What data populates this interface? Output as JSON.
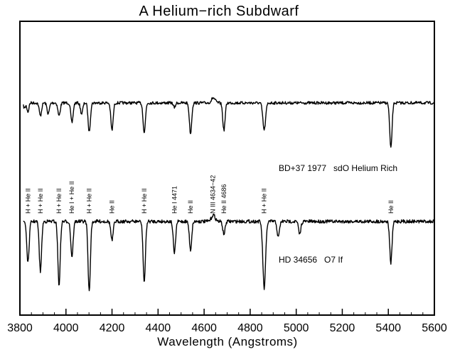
{
  "chart_data": {
    "type": "line",
    "title": "A Helium−rich Subdwarf",
    "xlabel": "Wavelength (Angstroms)",
    "ylabel": "",
    "xlim": [
      3800,
      5600
    ],
    "xticks": [
      3800,
      4000,
      4200,
      4400,
      4600,
      4800,
      5000,
      5200,
      5400,
      5600
    ],
    "grid": false,
    "series": [
      {
        "name": "BD+37 1977   sdO Helium Rich",
        "continuum": 1.0,
        "lines": [
          {
            "x": 3820,
            "depth": 0.1,
            "w": 5
          },
          {
            "x": 3835,
            "depth": 0.18,
            "w": 4
          },
          {
            "x": 3889,
            "depth": 0.26,
            "w": 5
          },
          {
            "x": 3923,
            "depth": 0.22,
            "w": 5
          },
          {
            "x": 3970,
            "depth": 0.26,
            "w": 5
          },
          {
            "x": 4026,
            "depth": 0.4,
            "w": 5
          },
          {
            "x": 4068,
            "depth": 0.22,
            "w": 5
          },
          {
            "x": 4101,
            "depth": 0.58,
            "w": 5
          },
          {
            "x": 4200,
            "depth": 0.55,
            "w": 5
          },
          {
            "x": 4340,
            "depth": 0.6,
            "w": 5
          },
          {
            "x": 4471,
            "depth": 0.1,
            "w": 4
          },
          {
            "x": 4541,
            "depth": 0.62,
            "w": 5
          },
          {
            "x": 4686,
            "depth": 0.55,
            "w": 5
          },
          {
            "x": 4861,
            "depth": 0.55,
            "w": 6
          },
          {
            "x": 5411,
            "depth": 0.92,
            "w": 5
          }
        ],
        "emission": [
          {
            "x": 4640,
            "height": 0.1,
            "w": 8
          }
        ]
      },
      {
        "name": "HD 34656   O7 If",
        "continuum": 1.0,
        "lines": [
          {
            "x": 3835,
            "depth": 0.65,
            "w": 5
          },
          {
            "x": 3889,
            "depth": 0.78,
            "w": 5
          },
          {
            "x": 3970,
            "depth": 1.0,
            "w": 5
          },
          {
            "x": 4026,
            "depth": 0.55,
            "w": 5
          },
          {
            "x": 4101,
            "depth": 1.1,
            "w": 5
          },
          {
            "x": 4200,
            "depth": 0.3,
            "w": 5
          },
          {
            "x": 4340,
            "depth": 0.95,
            "w": 5
          },
          {
            "x": 4471,
            "depth": 0.5,
            "w": 5
          },
          {
            "x": 4541,
            "depth": 0.45,
            "w": 5
          },
          {
            "x": 4686,
            "depth": 0.2,
            "w": 5
          },
          {
            "x": 4861,
            "depth": 1.05,
            "w": 6
          },
          {
            "x": 4922,
            "depth": 0.25,
            "w": 5
          },
          {
            "x": 5015,
            "depth": 0.2,
            "w": 5
          },
          {
            "x": 5411,
            "depth": 0.65,
            "w": 5
          }
        ],
        "emission": [
          {
            "x": 4640,
            "height": 0.1,
            "w": 8
          }
        ]
      }
    ],
    "line_labels": [
      {
        "text": "H + He II",
        "x": 3835
      },
      {
        "text": "H + He II",
        "x": 3889
      },
      {
        "text": "H + He II",
        "x": 3970
      },
      {
        "text": "He I + He II",
        "x": 4026
      },
      {
        "text": "H + He II",
        "x": 4101
      },
      {
        "text": "He II",
        "x": 4200
      },
      {
        "text": "H + He II",
        "x": 4340
      },
      {
        "text": "He I 4471",
        "x": 4471
      },
      {
        "text": "He II",
        "x": 4541
      },
      {
        "text": "N III 4634−42",
        "x": 4638
      },
      {
        "text": "He II 4686",
        "x": 4686
      },
      {
        "text": "H + He II",
        "x": 4861
      },
      {
        "text": "He II",
        "x": 5411
      }
    ]
  }
}
